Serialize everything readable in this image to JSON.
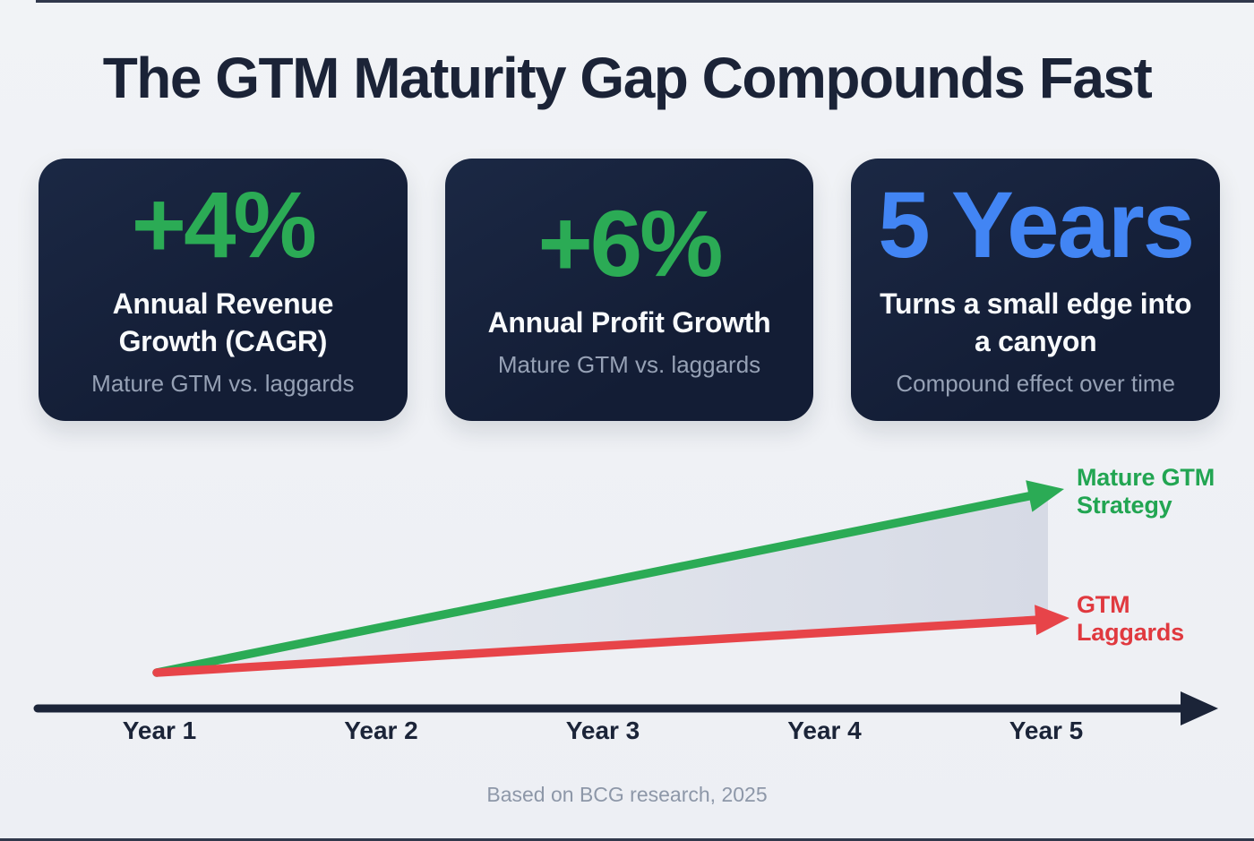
{
  "page": {
    "title": "The GTM Maturity Gap Compounds Fast",
    "footer": "Based on BCG research, 2025",
    "background_color": "#eef0f4",
    "card_background_color": "#16213c",
    "title_color": "#1b2337"
  },
  "cards": [
    {
      "value": "+4%",
      "value_color": "#2bab55",
      "title": "Annual Revenue Growth (CAGR)",
      "subtitle": "Mature GTM vs. laggards"
    },
    {
      "value": "+6%",
      "value_color": "#2bab55",
      "title": "Annual Profit Growth",
      "subtitle": "Mature GTM vs. laggards"
    },
    {
      "value": "5 Years",
      "value_color": "#4285f4",
      "title": "Turns a small edge into a canyon",
      "subtitle": "Compound effect over time"
    }
  ],
  "chart_data": {
    "type": "line",
    "title": "The GTM Maturity Gap Compounds Fast",
    "categories": [
      "Year 1",
      "Year 2",
      "Year 3",
      "Year 4",
      "Year 5"
    ],
    "series": [
      {
        "name": "Mature GTM Strategy",
        "color": "#2bab55",
        "values": [
          0,
          25,
          50,
          75,
          100
        ]
      },
      {
        "name": "GTM Laggards",
        "color": "#e74449",
        "values": [
          0,
          7,
          14,
          21,
          28
        ]
      }
    ],
    "xlabel": "",
    "ylabel": "",
    "y_axis_visible": false,
    "units": "relative growth (illustrative, no numeric y-axis shown)",
    "annotations": [
      "shaded gray wedge highlights the widening gap between the two lines"
    ],
    "legend_position": "right-of-line-ends",
    "axis_color": "#1b2438",
    "gap_fill_color": "#dadee8"
  }
}
